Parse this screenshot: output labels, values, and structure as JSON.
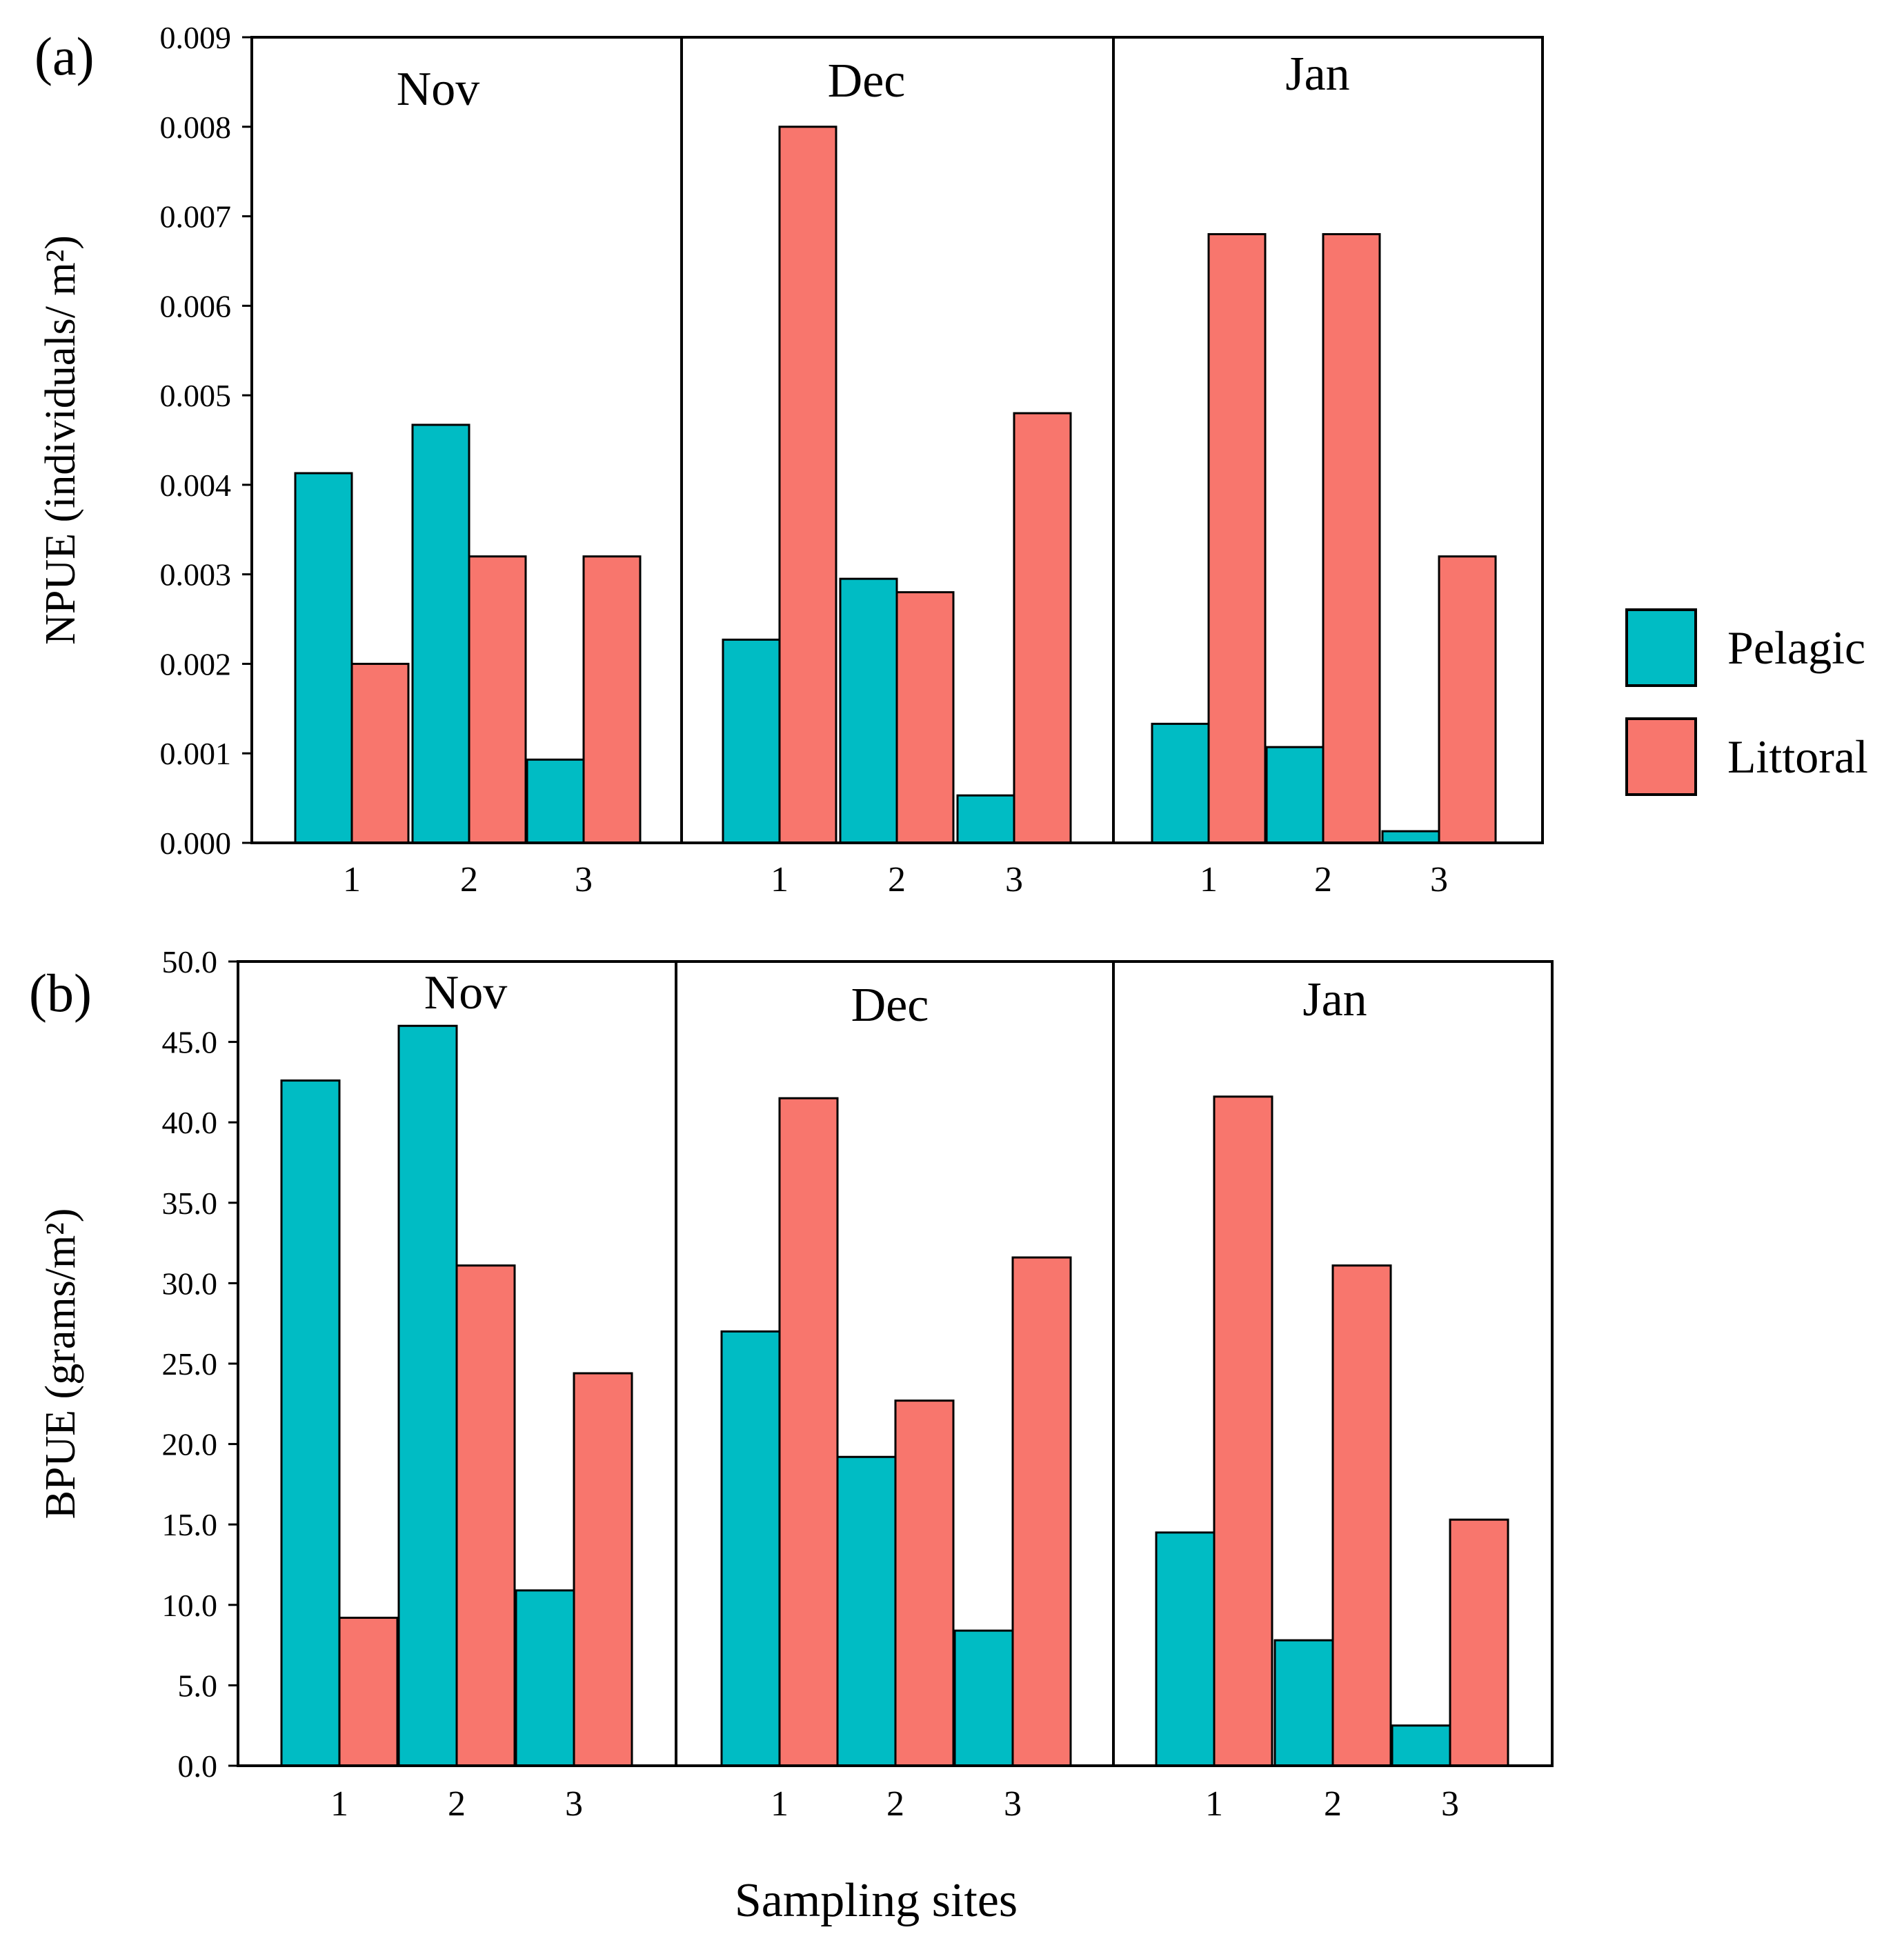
{
  "colors": {
    "pelagic": "#00bcc4",
    "littoral": "#f8766d",
    "axis": "#000000"
  },
  "legend": [
    {
      "key": "pelagic",
      "label": "Pelagic"
    },
    {
      "key": "littoral",
      "label": "Littoral"
    }
  ],
  "shared_xlabel": "Sampling sites",
  "chart_data": [
    {
      "type": "bar",
      "panel_label": "(a)",
      "ylabel": "NPUE (individuals/ m²)",
      "ylim": [
        0,
        0.009
      ],
      "yticks": [
        "0.000",
        "0.001",
        "0.002",
        "0.003",
        "0.004",
        "0.005",
        "0.006",
        "0.007",
        "0.008",
        "0.009"
      ],
      "facets": [
        {
          "month": "Nov",
          "categories": [
            "1",
            "2",
            "3"
          ],
          "series": [
            {
              "name": "Pelagic",
              "values": [
                0.00413,
                0.00467,
                0.00093
              ]
            },
            {
              "name": "Littoral",
              "values": [
                0.002,
                0.0032,
                0.0032
              ]
            }
          ]
        },
        {
          "month": "Dec",
          "categories": [
            "1",
            "2",
            "3"
          ],
          "series": [
            {
              "name": "Pelagic",
              "values": [
                0.00227,
                0.00295,
                0.00053
              ]
            },
            {
              "name": "Littoral",
              "values": [
                0.008,
                0.0028,
                0.0048
              ]
            }
          ]
        },
        {
          "month": "Jan",
          "categories": [
            "1",
            "2",
            "3"
          ],
          "series": [
            {
              "name": "Pelagic",
              "values": [
                0.00133,
                0.00107,
                0.00013
              ]
            },
            {
              "name": "Littoral",
              "values": [
                0.0068,
                0.0068,
                0.0032
              ]
            }
          ]
        }
      ]
    },
    {
      "type": "bar",
      "panel_label": "(b)",
      "ylabel": "BPUE (grams/m²)",
      "ylim": [
        0,
        50
      ],
      "yticks": [
        "0.0",
        "5.0",
        "10.0",
        "15.0",
        "20.0",
        "25.0",
        "30.0",
        "35.0",
        "40.0",
        "45.0",
        "50.0"
      ],
      "facets": [
        {
          "month": "Nov",
          "categories": [
            "1",
            "2",
            "3"
          ],
          "series": [
            {
              "name": "Pelagic",
              "values": [
                42.6,
                46.0,
                10.9
              ]
            },
            {
              "name": "Littoral",
              "values": [
                9.2,
                31.1,
                24.4
              ]
            }
          ]
        },
        {
          "month": "Dec",
          "categories": [
            "1",
            "2",
            "3"
          ],
          "series": [
            {
              "name": "Pelagic",
              "values": [
                27.0,
                19.2,
                8.4
              ]
            },
            {
              "name": "Littoral",
              "values": [
                41.5,
                22.7,
                31.6
              ]
            }
          ]
        },
        {
          "month": "Jan",
          "categories": [
            "1",
            "2",
            "3"
          ],
          "series": [
            {
              "name": "Pelagic",
              "values": [
                14.5,
                7.8,
                2.5
              ]
            },
            {
              "name": "Littoral",
              "values": [
                41.6,
                31.1,
                15.3
              ]
            }
          ]
        }
      ]
    }
  ]
}
